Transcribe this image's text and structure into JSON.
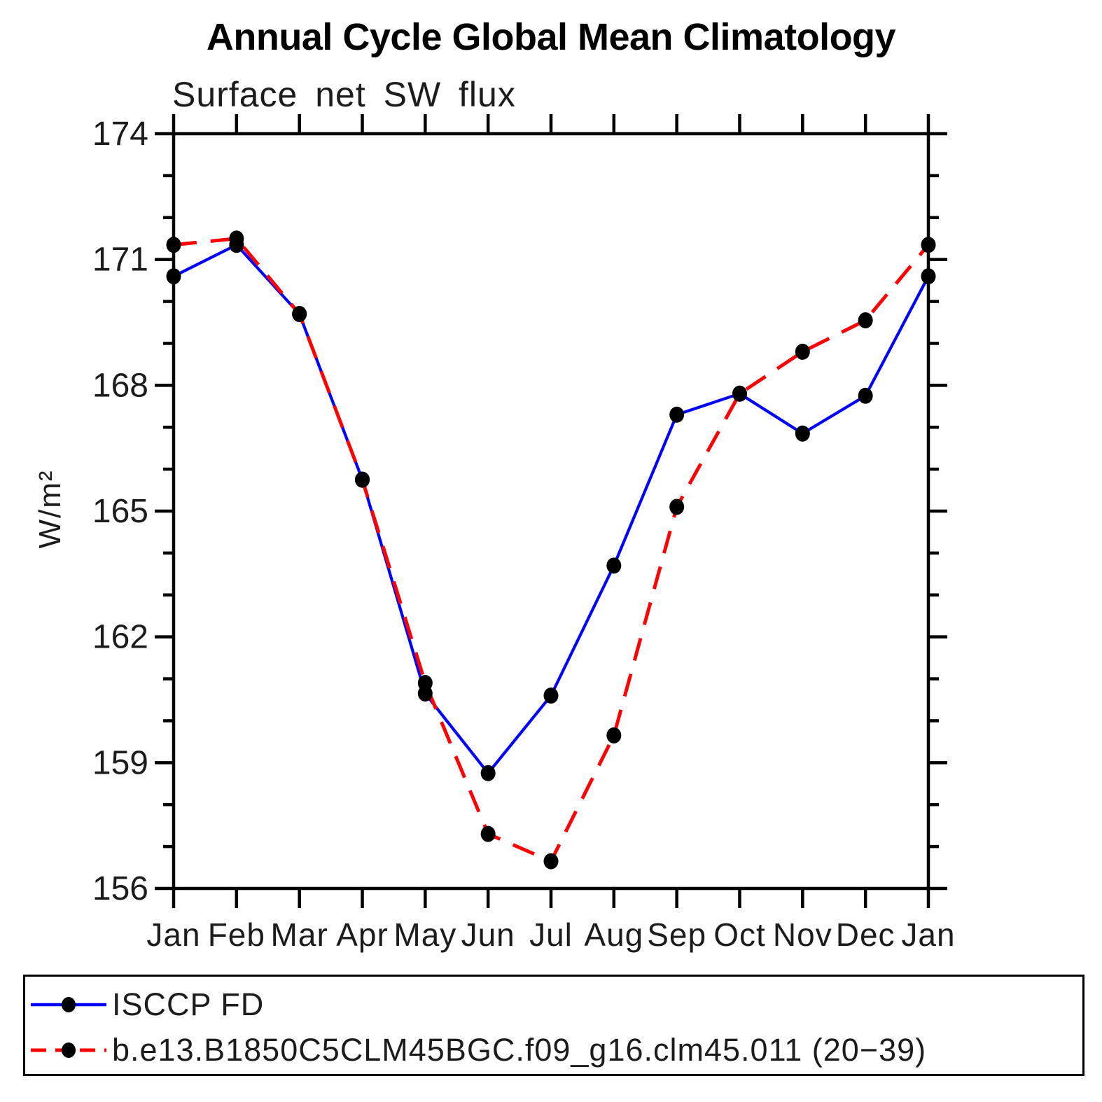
{
  "title": "Annual Cycle Global Mean Climatology",
  "chart_data": {
    "type": "line",
    "title": "Annual Cycle Global Mean Climatology",
    "subtitle": "Surface net SW flux",
    "xlabel": "",
    "ylabel": "W/m²",
    "categories": [
      "Jan",
      "Feb",
      "Mar",
      "Apr",
      "May",
      "Jun",
      "Jul",
      "Aug",
      "Sep",
      "Oct",
      "Nov",
      "Dec",
      "Jan"
    ],
    "ylim": [
      156,
      174
    ],
    "yticks_major": [
      156,
      159,
      162,
      165,
      168,
      171,
      174
    ],
    "ytick_minor_interval": 1,
    "grid": false,
    "legend_position": "bottom-box",
    "axis_color": "#000000",
    "marker_color": "#000000",
    "series": [
      {
        "name": "ISCCP FD",
        "color": "#0000ff",
        "style": "solid",
        "marker": "filled-circle",
        "values": [
          170.6,
          171.35,
          169.7,
          165.75,
          160.65,
          158.75,
          160.6,
          163.7,
          167.3,
          167.8,
          166.85,
          167.75,
          170.6
        ]
      },
      {
        "name": "b.e13.B1850C5CLM45BGC.f09_g16.clm45.011 (20−39)",
        "color": "#ff0000",
        "style": "dashed",
        "marker": "filled-circle",
        "values": [
          171.35,
          171.5,
          169.7,
          165.75,
          160.9,
          157.3,
          156.65,
          159.65,
          165.1,
          167.8,
          168.8,
          169.55,
          171.35
        ]
      }
    ]
  }
}
